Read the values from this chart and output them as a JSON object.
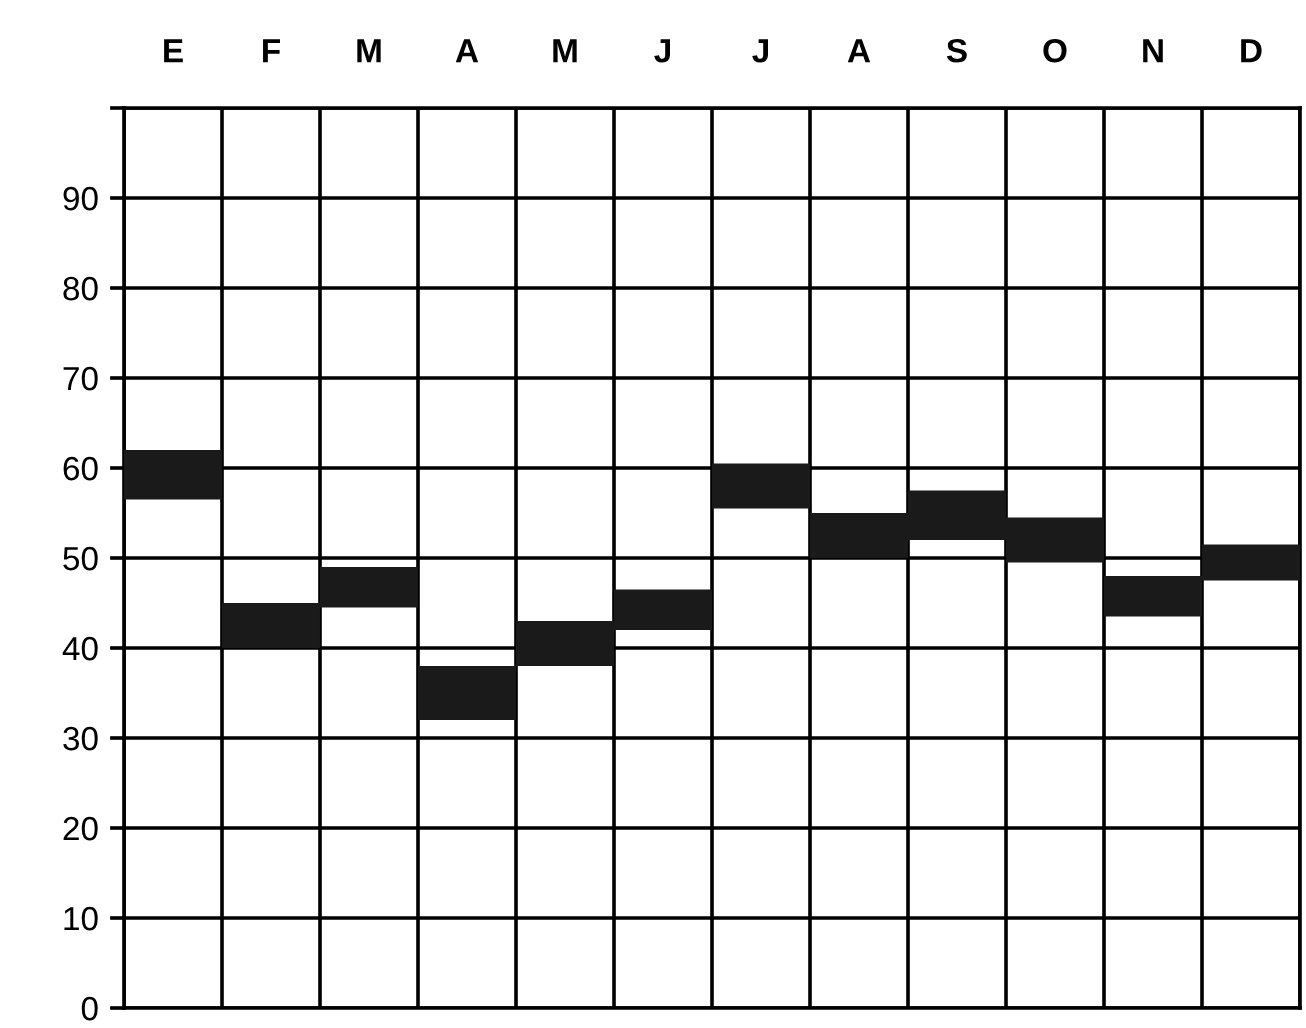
{
  "chart_data": {
    "type": "bar",
    "categories": [
      "E",
      "F",
      "M",
      "A",
      "M",
      "J",
      "J",
      "A",
      "S",
      "O",
      "N",
      "D"
    ],
    "base": [
      56.5,
      40,
      44.5,
      32,
      38,
      42,
      55.5,
      50,
      52,
      49.5,
      43.5,
      47.5
    ],
    "values": [
      5.5,
      5,
      4.5,
      6,
      5,
      4.5,
      5,
      5,
      5.5,
      5,
      4.5,
      4
    ],
    "color": "#1a1a1a",
    "ylim": [
      0,
      100
    ],
    "yticks": [
      0,
      10,
      20,
      30,
      40,
      50,
      60,
      70,
      80,
      90,
      {
        "value": 100,
        "label": null
      }
    ],
    "grid": true
  }
}
